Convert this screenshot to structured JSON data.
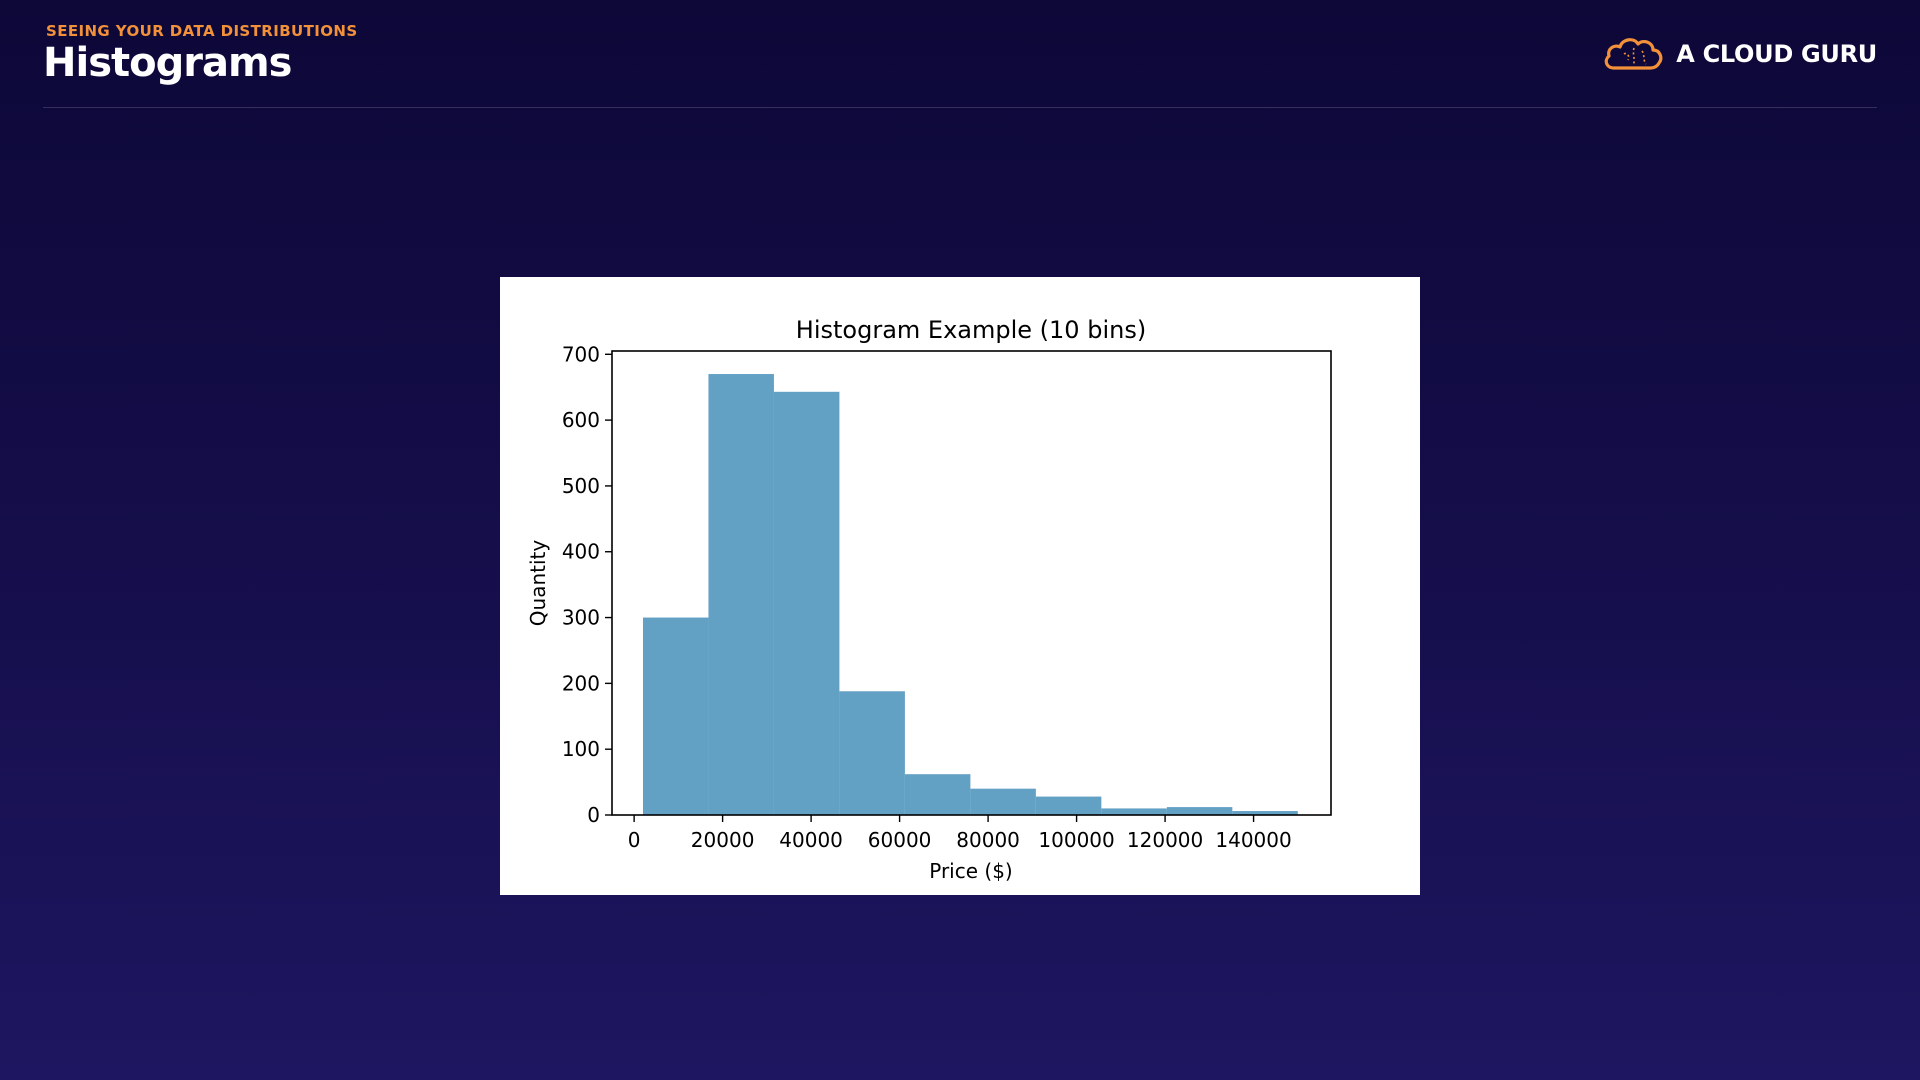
{
  "header": {
    "kicker": "SEEING YOUR DATA DISTRIBUTIONS",
    "title": "Histograms"
  },
  "logo": {
    "text": "A CLOUD GURU",
    "icon": "cloud-icon",
    "accent_color": "#f2913a"
  },
  "colors": {
    "background_top": "#0d0838",
    "background_bottom": "#1e1660",
    "bar": "#62a0c4",
    "kicker": "#f2913a"
  },
  "chart_data": {
    "type": "bar",
    "title": "Histogram Example (10 bins)",
    "xlabel": "Price ($)",
    "ylabel": "Quantity",
    "xlim": [
      -5000,
      157500
    ],
    "ylim": [
      0,
      705
    ],
    "grid": false,
    "bins": [
      {
        "x0": 2000,
        "x1": 16800,
        "count": 300
      },
      {
        "x0": 16800,
        "x1": 31600,
        "count": 670
      },
      {
        "x0": 31600,
        "x1": 46400,
        "count": 643
      },
      {
        "x0": 46400,
        "x1": 61200,
        "count": 188
      },
      {
        "x0": 61200,
        "x1": 76000,
        "count": 62
      },
      {
        "x0": 76000,
        "x1": 90800,
        "count": 40
      },
      {
        "x0": 90800,
        "x1": 105600,
        "count": 28
      },
      {
        "x0": 105600,
        "x1": 120400,
        "count": 10
      },
      {
        "x0": 120400,
        "x1": 135200,
        "count": 12
      },
      {
        "x0": 135200,
        "x1": 150000,
        "count": 6
      }
    ],
    "xticks": [
      0,
      20000,
      40000,
      60000,
      80000,
      100000,
      120000,
      140000
    ],
    "xtick_labels": [
      "0",
      "20000",
      "40000",
      "60000",
      "80000",
      "100000",
      "120000",
      "140000"
    ],
    "yticks": [
      0,
      100,
      200,
      300,
      400,
      500,
      600,
      700
    ],
    "ytick_labels": [
      "0",
      "100",
      "200",
      "300",
      "400",
      "500",
      "600",
      "700"
    ]
  }
}
